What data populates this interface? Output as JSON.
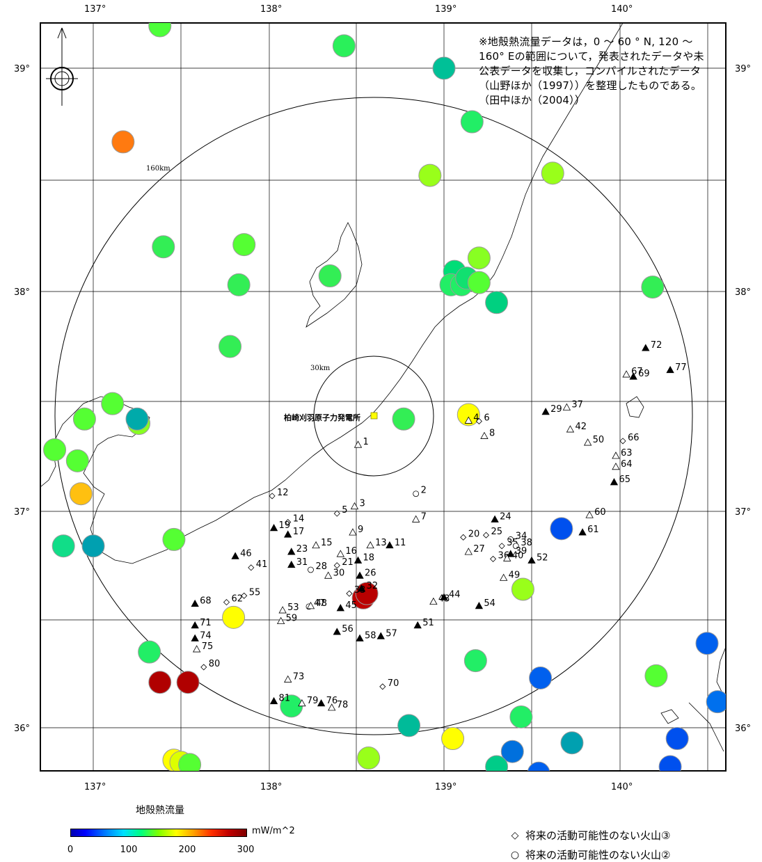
{
  "map": {
    "lon_labels": [
      "137°",
      "138°",
      "139°",
      "140°"
    ],
    "lat_labels": [
      "39°",
      "38°",
      "37°",
      "36°"
    ],
    "note": "※地殻熱流量データは，0 ～ 60 ° N, 120 ～160° Eの範囲について，発表されたデータや未公表データを収集し，コンパイルされたデータ（山野ほか（1997））を整理したものである。（田中ほか（2004））",
    "plant_label": "柏崎刈羽原子力発電所",
    "ring_160_label": "160km",
    "ring_30_label": "30km"
  },
  "colorbar": {
    "title": "地殻熱流量",
    "unit": "mW/m^2",
    "ticks": [
      "0",
      "100",
      "200",
      "300"
    ]
  },
  "legend": [
    {
      "symbol": "◇",
      "label": "将来の活動可能性のない火山③"
    },
    {
      "symbol": "○",
      "label": "将来の活動可能性のない火山②"
    }
  ],
  "heat_flow_points": [
    {
      "lon": 137.38,
      "lat": 39.19,
      "color": "#4dff3a"
    },
    {
      "lon": 138.43,
      "lat": 39.1,
      "color": "#2af05a"
    },
    {
      "lon": 139.0,
      "lat": 39.0,
      "color": "#00c097"
    },
    {
      "lon": 137.17,
      "lat": 38.67,
      "color": "#ff7a10"
    },
    {
      "lon": 139.16,
      "lat": 38.76,
      "color": "#22ee66"
    },
    {
      "lon": 138.92,
      "lat": 38.52,
      "color": "#99ff1a"
    },
    {
      "lon": 139.62,
      "lat": 38.53,
      "color": "#99ff1a"
    },
    {
      "lon": 137.4,
      "lat": 38.2,
      "color": "#33ee55"
    },
    {
      "lon": 137.86,
      "lat": 38.21,
      "color": "#55ff33"
    },
    {
      "lon": 137.83,
      "lat": 38.03,
      "color": "#33ee55"
    },
    {
      "lon": 138.35,
      "lat": 38.07,
      "color": "#33ee55"
    },
    {
      "lon": 139.2,
      "lat": 38.15,
      "color": "#88ff22"
    },
    {
      "lon": 139.06,
      "lat": 38.09,
      "color": "#00dd77"
    },
    {
      "lon": 139.04,
      "lat": 38.03,
      "color": "#22ee66"
    },
    {
      "lon": 139.1,
      "lat": 38.03,
      "color": "#22ee66"
    },
    {
      "lon": 139.13,
      "lat": 38.06,
      "color": "#11e070"
    },
    {
      "lon": 139.2,
      "lat": 38.04,
      "color": "#55ff33"
    },
    {
      "lon": 139.3,
      "lat": 37.95,
      "color": "#00d080"
    },
    {
      "lon": 140.19,
      "lat": 38.02,
      "color": "#33ee55"
    },
    {
      "lon": 137.78,
      "lat": 37.75,
      "color": "#33ee55"
    },
    {
      "lon": 137.11,
      "lat": 37.49,
      "color": "#55ff33"
    },
    {
      "lon": 136.95,
      "lat": 37.42,
      "color": "#55ff33"
    },
    {
      "lon": 137.26,
      "lat": 37.4,
      "color": "#88ff22"
    },
    {
      "lon": 137.25,
      "lat": 37.42,
      "color": "#00aaaa"
    },
    {
      "lon": 136.78,
      "lat": 37.28,
      "color": "#55ff33"
    },
    {
      "lon": 136.91,
      "lat": 37.23,
      "color": "#55ff33"
    },
    {
      "lon": 136.93,
      "lat": 37.08,
      "color": "#ffc010"
    },
    {
      "lon": 138.77,
      "lat": 37.42,
      "color": "#33ee55"
    },
    {
      "lon": 139.14,
      "lat": 37.44,
      "color": "#ffff00"
    },
    {
      "lon": 136.83,
      "lat": 36.84,
      "color": "#11dd88"
    },
    {
      "lon": 137.0,
      "lat": 36.84,
      "color": "#00a0b0"
    },
    {
      "lon": 137.46,
      "lat": 36.87,
      "color": "#55ff33"
    },
    {
      "lon": 139.67,
      "lat": 36.92,
      "color": "#0050ee"
    },
    {
      "lon": 138.54,
      "lat": 36.6,
      "color": "#c00000"
    },
    {
      "lon": 138.56,
      "lat": 36.62,
      "color": "#b80000"
    },
    {
      "lon": 139.45,
      "lat": 36.64,
      "color": "#99ff1a"
    },
    {
      "lon": 137.8,
      "lat": 36.51,
      "color": "#ffff00"
    },
    {
      "lon": 140.5,
      "lat": 36.39,
      "color": "#0060ee"
    },
    {
      "lon": 137.32,
      "lat": 36.35,
      "color": "#22ee66"
    },
    {
      "lon": 139.18,
      "lat": 36.31,
      "color": "#22ee66"
    },
    {
      "lon": 140.21,
      "lat": 36.24,
      "color": "#55ff33"
    },
    {
      "lon": 139.55,
      "lat": 36.23,
      "color": "#0060ee"
    },
    {
      "lon": 137.38,
      "lat": 36.21,
      "color": "#b00000"
    },
    {
      "lon": 137.54,
      "lat": 36.21,
      "color": "#b00000"
    },
    {
      "lon": 140.56,
      "lat": 36.12,
      "color": "#0070ee"
    },
    {
      "lon": 138.13,
      "lat": 36.1,
      "color": "#22ee66"
    },
    {
      "lon": 139.44,
      "lat": 36.05,
      "color": "#22ee66"
    },
    {
      "lon": 138.8,
      "lat": 36.01,
      "color": "#00bb99"
    },
    {
      "lon": 139.05,
      "lat": 35.95,
      "color": "#ffff00"
    },
    {
      "lon": 140.33,
      "lat": 35.95,
      "color": "#0050ee"
    },
    {
      "lon": 139.73,
      "lat": 35.93,
      "color": "#00a0b0"
    },
    {
      "lon": 139.39,
      "lat": 35.89,
      "color": "#0070dd"
    },
    {
      "lon": 138.57,
      "lat": 35.86,
      "color": "#99ff1a"
    },
    {
      "lon": 137.46,
      "lat": 35.85,
      "color": "#ffff00"
    },
    {
      "lon": 137.5,
      "lat": 35.84,
      "color": "#ddff00"
    },
    {
      "lon": 137.55,
      "lat": 35.83,
      "color": "#55ff33"
    },
    {
      "lon": 139.3,
      "lat": 35.82,
      "color": "#00cc88"
    },
    {
      "lon": 140.29,
      "lat": 35.82,
      "color": "#0050ee"
    },
    {
      "lon": 139.54,
      "lat": 35.79,
      "color": "#0060ee"
    }
  ],
  "volcanoes": [
    {
      "num": "1",
      "type": "tri-open",
      "lon": 138.51,
      "lat": 37.3
    },
    {
      "num": "2",
      "type": "circle",
      "lon": 138.84,
      "lat": 37.08
    },
    {
      "num": "3",
      "type": "tri-open",
      "lon": 138.49,
      "lat": 37.02
    },
    {
      "num": "4",
      "type": "tri-open",
      "lon": 139.14,
      "lat": 37.41
    },
    {
      "num": "5",
      "type": "diamond",
      "lon": 138.39,
      "lat": 36.99
    },
    {
      "num": "6",
      "type": "diamond",
      "lon": 139.2,
      "lat": 37.41
    },
    {
      "num": "7",
      "type": "tri-open",
      "lon": 138.84,
      "lat": 36.96
    },
    {
      "num": "8",
      "type": "tri-open",
      "lon": 139.23,
      "lat": 37.34
    },
    {
      "num": "9",
      "type": "tri-open",
      "lon": 138.48,
      "lat": 36.9
    },
    {
      "num": "11",
      "type": "tri-filled",
      "lon": 138.69,
      "lat": 36.84
    },
    {
      "num": "12",
      "type": "diamond",
      "lon": 138.02,
      "lat": 37.07
    },
    {
      "num": "13",
      "type": "tri-open",
      "lon": 138.58,
      "lat": 36.84
    },
    {
      "num": "14",
      "type": "diamond",
      "lon": 138.11,
      "lat": 36.95
    },
    {
      "num": "15",
      "type": "tri-open",
      "lon": 138.27,
      "lat": 36.84
    },
    {
      "num": "16",
      "type": "tri-open",
      "lon": 138.41,
      "lat": 36.8
    },
    {
      "num": "17",
      "type": "tri-filled",
      "lon": 138.11,
      "lat": 36.89
    },
    {
      "num": "18",
      "type": "tri-filled",
      "lon": 138.51,
      "lat": 36.77
    },
    {
      "num": "19",
      "type": "tri-filled",
      "lon": 138.03,
      "lat": 36.92
    },
    {
      "num": "20",
      "type": "diamond",
      "lon": 139.11,
      "lat": 36.88
    },
    {
      "num": "21",
      "type": "diamond",
      "lon": 138.39,
      "lat": 36.75
    },
    {
      "num": "23",
      "type": "tri-filled",
      "lon": 138.13,
      "lat": 36.81
    },
    {
      "num": "24",
      "type": "tri-filled",
      "lon": 139.29,
      "lat": 36.96
    },
    {
      "num": "25",
      "type": "diamond",
      "lon": 139.24,
      "lat": 36.89
    },
    {
      "num": "26",
      "type": "tri-filled",
      "lon": 138.52,
      "lat": 36.7
    },
    {
      "num": "27",
      "type": "tri-open",
      "lon": 139.14,
      "lat": 36.81
    },
    {
      "num": "28",
      "type": "circle",
      "lon": 138.24,
      "lat": 36.73
    },
    {
      "num": "29",
      "type": "tri-filled",
      "lon": 139.58,
      "lat": 37.45
    },
    {
      "num": "30",
      "type": "tri-open",
      "lon": 138.34,
      "lat": 36.7
    },
    {
      "num": "31",
      "type": "tri-filled",
      "lon": 138.13,
      "lat": 36.75
    },
    {
      "num": "32",
      "type": "tri-filled",
      "lon": 138.53,
      "lat": 36.64
    },
    {
      "num": "33",
      "type": "diamond",
      "lon": 138.46,
      "lat": 36.62
    },
    {
      "num": "34",
      "type": "circle",
      "lon": 139.38,
      "lat": 36.87
    },
    {
      "num": "35",
      "type": "diamond",
      "lon": 139.33,
      "lat": 36.84
    },
    {
      "num": "36",
      "type": "diamond",
      "lon": 139.28,
      "lat": 36.78
    },
    {
      "num": "37",
      "type": "tri-open",
      "lon": 139.7,
      "lat": 37.47
    },
    {
      "num": "38",
      "type": "circle",
      "lon": 139.41,
      "lat": 36.84
    },
    {
      "num": "39",
      "type": "tri-filled",
      "lon": 139.38,
      "lat": 36.8
    },
    {
      "num": "40",
      "type": "tri-open",
      "lon": 139.36,
      "lat": 36.78
    },
    {
      "num": "41",
      "type": "diamond",
      "lon": 137.9,
      "lat": 36.74
    },
    {
      "num": "42",
      "type": "tri-open",
      "lon": 139.72,
      "lat": 37.37
    },
    {
      "num": "43",
      "type": "tri-open",
      "lon": 138.94,
      "lat": 36.58
    },
    {
      "num": "44",
      "type": "tri-filled",
      "lon": 139.0,
      "lat": 36.6
    },
    {
      "num": "45",
      "type": "tri-filled",
      "lon": 138.41,
      "lat": 36.55
    },
    {
      "num": "46",
      "type": "tri-filled",
      "lon": 137.81,
      "lat": 36.79
    },
    {
      "num": "47",
      "type": "circle",
      "lon": 138.23,
      "lat": 36.56
    },
    {
      "num": "48",
      "type": "tri-open",
      "lon": 138.24,
      "lat": 36.56
    },
    {
      "num": "49",
      "type": "tri-open",
      "lon": 139.34,
      "lat": 36.69
    },
    {
      "num": "50",
      "type": "tri-open",
      "lon": 139.82,
      "lat": 37.31
    },
    {
      "num": "51",
      "type": "tri-filled",
      "lon": 138.85,
      "lat": 36.47
    },
    {
      "num": "52",
      "type": "tri-filled",
      "lon": 139.5,
      "lat": 36.77
    },
    {
      "num": "53",
      "type": "tri-open",
      "lon": 138.08,
      "lat": 36.54
    },
    {
      "num": "54",
      "type": "tri-filled",
      "lon": 139.2,
      "lat": 36.56
    },
    {
      "num": "55",
      "type": "diamond",
      "lon": 137.86,
      "lat": 36.61
    },
    {
      "num": "56",
      "type": "tri-filled",
      "lon": 138.39,
      "lat": 36.44
    },
    {
      "num": "57",
      "type": "tri-filled",
      "lon": 138.64,
      "lat": 36.42
    },
    {
      "num": "58",
      "type": "tri-filled",
      "lon": 138.52,
      "lat": 36.41
    },
    {
      "num": "59",
      "type": "tri-open",
      "lon": 138.07,
      "lat": 36.49
    },
    {
      "num": "60",
      "type": "tri-open",
      "lon": 139.83,
      "lat": 36.98
    },
    {
      "num": "61",
      "type": "tri-filled",
      "lon": 139.79,
      "lat": 36.9
    },
    {
      "num": "62",
      "type": "diamond",
      "lon": 137.76,
      "lat": 36.58
    },
    {
      "num": "63",
      "type": "tri-open",
      "lon": 139.98,
      "lat": 37.25
    },
    {
      "num": "64",
      "type": "tri-open",
      "lon": 139.98,
      "lat": 37.2
    },
    {
      "num": "65",
      "type": "tri-filled",
      "lon": 139.97,
      "lat": 37.13
    },
    {
      "num": "66",
      "type": "diamond",
      "lon": 140.02,
      "lat": 37.32
    },
    {
      "num": "67",
      "type": "tri-open",
      "lon": 140.04,
      "lat": 37.62
    },
    {
      "num": "68",
      "type": "tri-filled",
      "lon": 137.58,
      "lat": 36.57
    },
    {
      "num": "69",
      "type": "tri-filled",
      "lon": 140.08,
      "lat": 37.61
    },
    {
      "num": "70",
      "type": "diamond",
      "lon": 138.65,
      "lat": 36.19
    },
    {
      "num": "71",
      "type": "tri-filled",
      "lon": 137.58,
      "lat": 36.47
    },
    {
      "num": "72",
      "type": "tri-filled",
      "lon": 140.15,
      "lat": 37.74
    },
    {
      "num": "73",
      "type": "tri-open",
      "lon": 138.11,
      "lat": 36.22
    },
    {
      "num": "74",
      "type": "tri-filled",
      "lon": 137.58,
      "lat": 36.41
    },
    {
      "num": "75",
      "type": "tri-open",
      "lon": 137.59,
      "lat": 36.36
    },
    {
      "num": "76",
      "type": "tri-filled",
      "lon": 138.3,
      "lat": 36.11
    },
    {
      "num": "77",
      "type": "tri-filled",
      "lon": 140.29,
      "lat": 37.64
    },
    {
      "num": "78",
      "type": "tri-open",
      "lon": 138.36,
      "lat": 36.09
    },
    {
      "num": "79",
      "type": "tri-open",
      "lon": 138.19,
      "lat": 36.11
    },
    {
      "num": "80",
      "type": "diamond",
      "lon": 137.63,
      "lat": 36.28
    },
    {
      "num": "81",
      "type": "tri-filled",
      "lon": 138.03,
      "lat": 36.12
    }
  ]
}
